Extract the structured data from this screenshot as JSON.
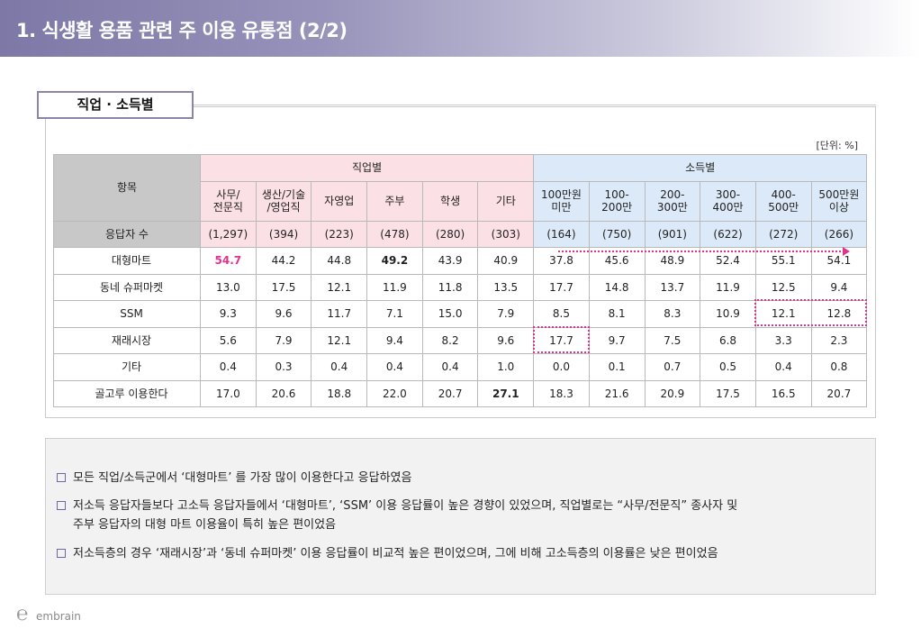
{
  "header": {
    "title": "1. 식생활 용품 관련 주 이용 유통점 (2/2)"
  },
  "section": {
    "tab_label": "직업 · 소득별",
    "unit": "[단위: %]"
  },
  "table": {
    "item_header": "항목",
    "group_job": "직업별",
    "group_income": "소득별",
    "job_cols": [
      {
        "line1": "사무/",
        "line2": "전문직"
      },
      {
        "line1": "생산/기술",
        "line2": "/영업직"
      },
      {
        "line1": "자영업",
        "line2": ""
      },
      {
        "line1": "주부",
        "line2": ""
      },
      {
        "line1": "학생",
        "line2": ""
      },
      {
        "line1": "기타",
        "line2": ""
      }
    ],
    "income_cols": [
      {
        "line1": "100만원",
        "line2": "미만"
      },
      {
        "line1": "100-",
        "line2": "200만"
      },
      {
        "line1": "200-",
        "line2": "300만"
      },
      {
        "line1": "300-",
        "line2": "400만"
      },
      {
        "line1": "400-",
        "line2": "500만"
      },
      {
        "line1": "500만원",
        "line2": "이상"
      }
    ],
    "respondents": {
      "label": "응답자 수",
      "values": [
        "(1,297)",
        "(394)",
        "(223)",
        "(478)",
        "(280)",
        "(303)",
        "(164)",
        "(750)",
        "(901)",
        "(622)",
        "(272)",
        "(266)"
      ]
    },
    "rows": [
      {
        "label": "대형마트",
        "values": [
          "54.7",
          "44.2",
          "44.8",
          "49.2",
          "43.9",
          "40.9",
          "37.8",
          "45.6",
          "48.9",
          "52.4",
          "55.1",
          "54.1"
        ]
      },
      {
        "label": "동네 슈퍼마켓",
        "values": [
          "13.0",
          "17.5",
          "12.1",
          "11.9",
          "11.8",
          "13.5",
          "17.7",
          "14.8",
          "13.7",
          "11.9",
          "12.5",
          "9.4"
        ]
      },
      {
        "label": "SSM",
        "values": [
          "9.3",
          "9.6",
          "11.7",
          "7.1",
          "15.0",
          "7.9",
          "8.5",
          "8.1",
          "8.3",
          "10.9",
          "12.1",
          "12.8"
        ]
      },
      {
        "label": "재래시장",
        "values": [
          "5.6",
          "7.9",
          "12.1",
          "9.4",
          "8.2",
          "9.6",
          "17.7",
          "9.7",
          "7.5",
          "6.8",
          "3.3",
          "2.3"
        ]
      },
      {
        "label": "기타",
        "values": [
          "0.4",
          "0.3",
          "0.4",
          "0.4",
          "0.4",
          "1.0",
          "0.0",
          "0.1",
          "0.7",
          "0.5",
          "0.4",
          "0.8"
        ]
      },
      {
        "label": "골고루 이용한다",
        "values": [
          "17.0",
          "20.6",
          "18.8",
          "22.0",
          "20.7",
          "27.1",
          "18.3",
          "21.6",
          "20.9",
          "17.5",
          "16.5",
          "20.7"
        ]
      }
    ],
    "highlight_color": "#e0338d"
  },
  "summary": {
    "bullets": [
      {
        "line1": "모든 직업/소득군에서 ‘대형마트’ 를 가장 많이 이용한다고 응답하였음",
        "line2": ""
      },
      {
        "line1": "저소득 응답자들보다 고소득 응답자들에서 ‘대형마트’, ‘SSM’ 이용 응답률이 높은 경향이 있었으며, 직업별로는 “사무/전문직” 종사자 및",
        "line2": "주부 응답자의 대형 마트 이용율이 특히 높은 편이었음"
      },
      {
        "line1": "저소득층의 경우 ‘재래시장’과 ‘동네 슈퍼마켓’ 이용 응답률이 비교적 높은 편이었으며, 그에 비해 고소득층의 이용률은 낮은 편이었음",
        "line2": ""
      }
    ]
  },
  "footer": {
    "logo_text": "embrain"
  }
}
